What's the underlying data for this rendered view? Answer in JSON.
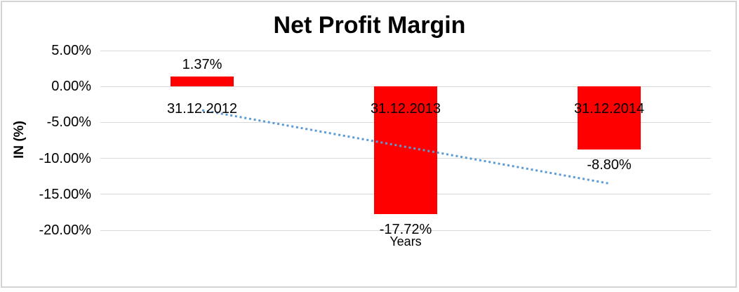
{
  "chart_data": {
    "type": "bar",
    "title": "Net Profit Margin",
    "xlabel": "Years",
    "ylabel": "IN (%)",
    "categories": [
      "31.12.2012",
      "31.12.2013",
      "31.12.2014"
    ],
    "values": [
      1.37,
      -17.72,
      -8.8
    ],
    "data_labels": [
      "1.37%",
      "-17.72%",
      "-8.80%"
    ],
    "y_ticks": [
      5,
      0,
      -5,
      -10,
      -15,
      -20
    ],
    "y_tick_labels": [
      "5.00%",
      "0.00%",
      "-5.00%",
      "-10.00%",
      "-15.00%",
      "-20.00%"
    ],
    "ylim": [
      -20,
      5
    ],
    "grid": true,
    "legend": "none",
    "trendline": {
      "type": "linear",
      "style": "dotted",
      "start_value": -3.3,
      "end_value": -13.5
    },
    "colors": {
      "bar": "#FF0000",
      "trendline": "#5B9BD5",
      "gridline": "#D9D9D9",
      "text": "#000000",
      "frame_border": "#D3D3D3",
      "background": "#FFFFFF"
    }
  }
}
